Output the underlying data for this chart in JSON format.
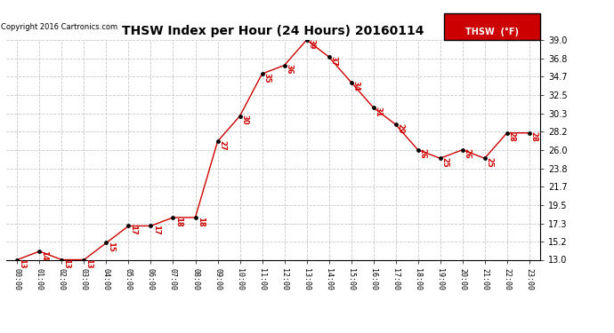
{
  "title": "THSW Index per Hour (24 Hours) 20160114",
  "copyright": "Copyright 2016 Cartronics.com",
  "legend_label": "THSW  (°F)",
  "hours": [
    0,
    1,
    2,
    3,
    4,
    5,
    6,
    7,
    8,
    9,
    10,
    11,
    12,
    13,
    14,
    15,
    16,
    17,
    18,
    19,
    20,
    21,
    22,
    23
  ],
  "values": [
    13,
    14,
    13,
    13,
    15,
    17,
    17,
    18,
    18,
    27,
    30,
    35,
    36,
    39,
    37,
    34,
    31,
    29,
    26,
    25,
    26,
    25,
    28,
    28
  ],
  "line_color": "#cc0000",
  "marker_color": "#000000",
  "label_color": "#cc0000",
  "background_color": "#ffffff",
  "grid_color": "#c8c8c8",
  "ylim_min": 13.0,
  "ylim_max": 39.0,
  "yticks": [
    13.0,
    15.2,
    17.3,
    19.5,
    21.7,
    23.8,
    26.0,
    28.2,
    30.3,
    32.5,
    34.7,
    36.8,
    39.0
  ],
  "xlabel_fontsize": 6,
  "ylabel_fontsize": 7,
  "title_fontsize": 10,
  "annotation_fontsize": 6,
  "copyright_fontsize": 6,
  "legend_fontsize": 7
}
